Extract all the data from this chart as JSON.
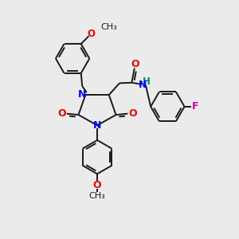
{
  "bg_color": "#ebebeb",
  "bond_color": "#1a1a1a",
  "N_color": "#0000ee",
  "O_color": "#ee0000",
  "F_color": "#cc00aa",
  "H_color": "#008080",
  "font_size": 8.5,
  "line_width": 1.4,
  "fig_w": 3.0,
  "fig_h": 3.0,
  "dpi": 100,
  "xlim": [
    0,
    10
  ],
  "ylim": [
    0,
    10
  ]
}
